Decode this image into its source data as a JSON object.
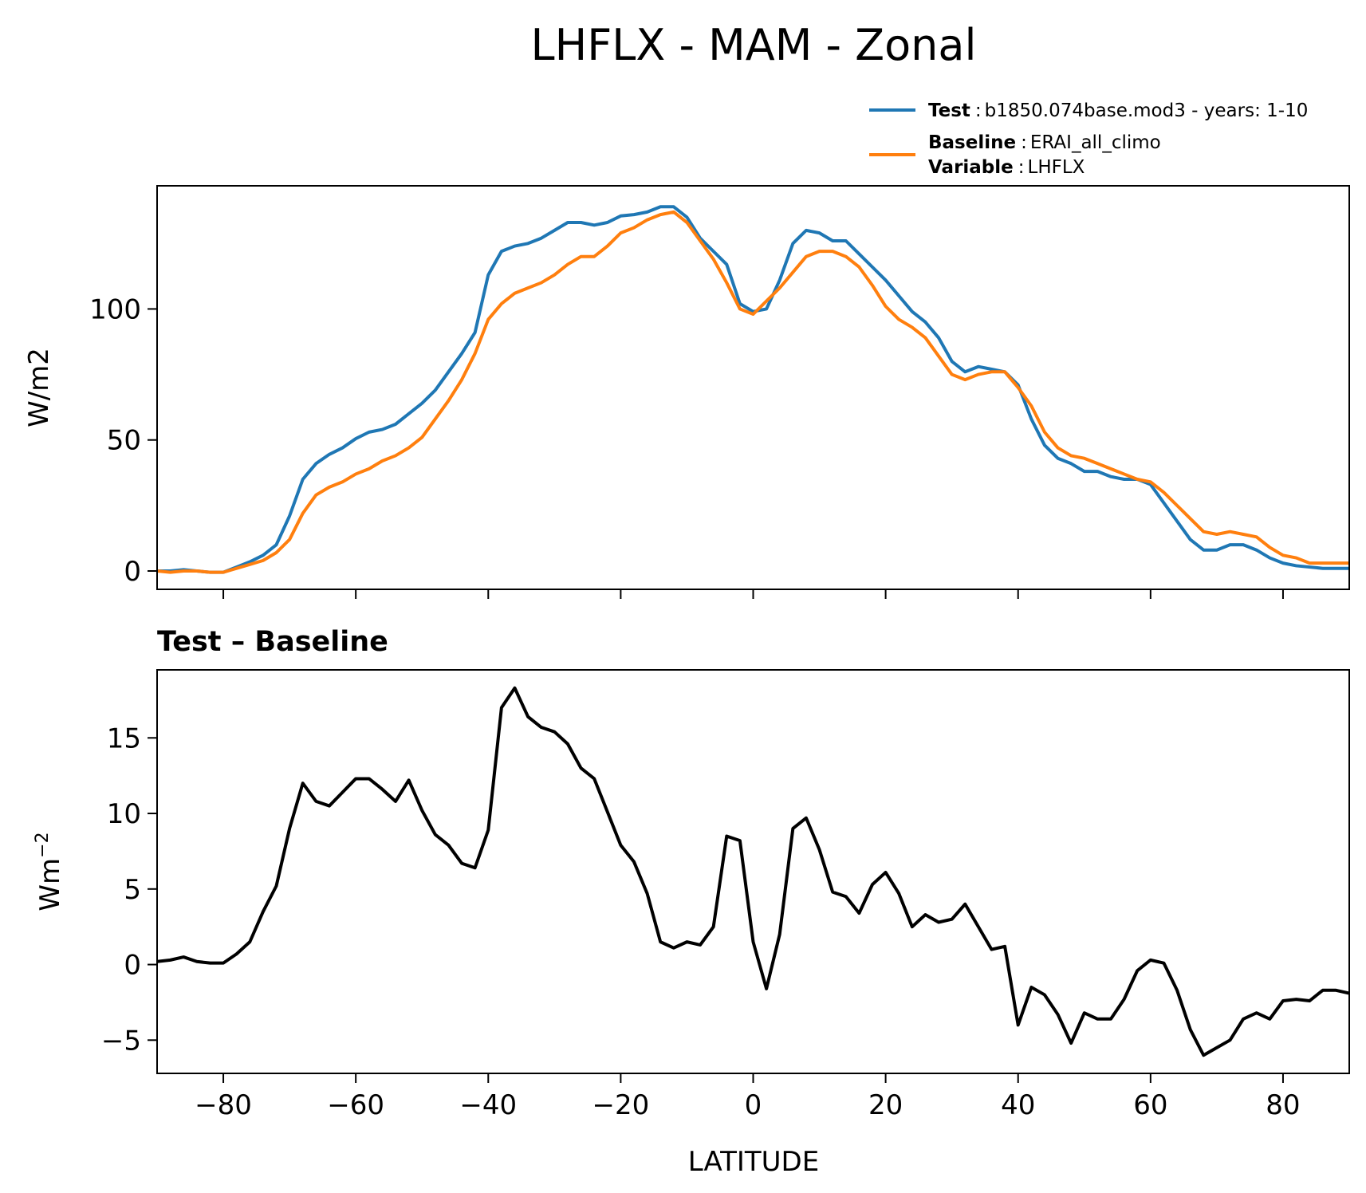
{
  "chart_data": [
    {
      "type": "line",
      "title": "LHFLX - MAM - Zonal",
      "xlabel": "",
      "ylabel": "W/m2",
      "xlim": [
        -90,
        90
      ],
      "ylim": [
        -7,
        147
      ],
      "x_ticks": [
        -80,
        -60,
        -40,
        -20,
        0,
        20,
        40,
        60,
        80
      ],
      "y_ticks": [
        0,
        50,
        100
      ],
      "y_tick_labels": [
        "0",
        "50",
        "100"
      ],
      "legend": [
        {
          "key": "Test",
          "sep": ":",
          "text": "b1850.074base.mod3 - years: 1-10",
          "color": "#1f77b4"
        },
        {
          "key": "Baseline",
          "sep": ":",
          "text": "ERAI_all_climo",
          "color": "#ff7f0e",
          "key2": "Variable",
          "sep2": ":",
          "text2": "LHFLX"
        }
      ],
      "series": [
        {
          "name": "Test",
          "color": "#1f77b4",
          "x": [
            -90,
            -88,
            -86,
            -84,
            -82,
            -80,
            -78,
            -76,
            -74,
            -72,
            -70,
            -68,
            -66,
            -64,
            -62,
            -60,
            -58,
            -56,
            -54,
            -52,
            -50,
            -48,
            -46,
            -44,
            -42,
            -40,
            -38,
            -36,
            -34,
            -32,
            -30,
            -28,
            -26,
            -24,
            -22,
            -20,
            -18,
            -16,
            -14,
            -12,
            -10,
            -8,
            -6,
            -4,
            -2,
            0,
            2,
            4,
            6,
            8,
            10,
            12,
            14,
            16,
            18,
            20,
            22,
            24,
            26,
            28,
            30,
            32,
            34,
            36,
            38,
            40,
            42,
            44,
            46,
            48,
            50,
            52,
            54,
            56,
            58,
            60,
            62,
            64,
            66,
            68,
            70,
            72,
            74,
            76,
            78,
            80,
            82,
            84,
            86,
            88,
            90
          ],
          "values": [
            0,
            0,
            0.5,
            0,
            -0.5,
            -0.5,
            1.5,
            3.5,
            6,
            10,
            21,
            35,
            41,
            44.5,
            47,
            50.5,
            53,
            54,
            56,
            60,
            64,
            69,
            76,
            83,
            91,
            113,
            122,
            124,
            125,
            127,
            130,
            133,
            133,
            132,
            133,
            135.5,
            136,
            137,
            139,
            139,
            135,
            127,
            122,
            117,
            102,
            99,
            100,
            111,
            125,
            130,
            129,
            126,
            126,
            121,
            116,
            111,
            105,
            99,
            95,
            89,
            80,
            76,
            78,
            77,
            76,
            71,
            58,
            48,
            43,
            41,
            38,
            38,
            36,
            35,
            35,
            33,
            26,
            19,
            12,
            8,
            8,
            10,
            10,
            8,
            5,
            3,
            2,
            1.5,
            1,
            1,
            1
          ]
        },
        {
          "name": "Baseline",
          "color": "#ff7f0e",
          "x": [
            -90,
            -88,
            -86,
            -84,
            -82,
            -80,
            -78,
            -76,
            -74,
            -72,
            -70,
            -68,
            -66,
            -64,
            -62,
            -60,
            -58,
            -56,
            -54,
            -52,
            -50,
            -48,
            -46,
            -44,
            -42,
            -40,
            -38,
            -36,
            -34,
            -32,
            -30,
            -28,
            -26,
            -24,
            -22,
            -20,
            -18,
            -16,
            -14,
            -12,
            -10,
            -8,
            -6,
            -4,
            -2,
            0,
            2,
            4,
            6,
            8,
            10,
            12,
            14,
            16,
            18,
            20,
            22,
            24,
            26,
            28,
            30,
            32,
            34,
            36,
            38,
            40,
            42,
            44,
            46,
            48,
            50,
            52,
            54,
            56,
            58,
            60,
            62,
            64,
            66,
            68,
            70,
            72,
            74,
            76,
            78,
            80,
            82,
            84,
            86,
            88,
            90
          ],
          "values": [
            0,
            -0.5,
            0,
            0,
            -0.5,
            -0.5,
            1,
            2.5,
            4,
            7,
            12,
            22,
            29,
            32,
            34,
            37,
            39,
            42,
            44,
            47,
            51,
            58,
            65,
            73,
            83,
            96,
            102,
            106,
            108,
            110,
            113,
            117,
            120,
            120,
            124,
            129,
            131,
            134,
            136,
            137,
            133,
            126,
            119,
            110,
            100,
            98,
            103,
            108,
            114,
            120,
            122,
            122,
            120,
            116,
            109,
            101,
            96,
            93,
            89,
            82,
            75,
            73,
            75,
            76,
            76,
            70,
            63,
            53,
            47,
            44,
            43,
            41,
            39,
            37,
            35,
            34,
            30,
            25,
            20,
            15,
            14,
            15,
            14,
            13,
            9,
            6,
            5,
            3,
            3,
            3,
            3
          ]
        }
      ]
    },
    {
      "type": "line",
      "title": "Test – Baseline",
      "xlabel": "LATITUDE",
      "ylabel": "Wm",
      "ylabel_sup": "−2",
      "xlim": [
        -90,
        90
      ],
      "ylim": [
        -7.2,
        19.5
      ],
      "x_ticks": [
        -80,
        -60,
        -40,
        -20,
        0,
        20,
        40,
        60,
        80
      ],
      "x_tick_labels": [
        "−80",
        "−60",
        "−40",
        "−20",
        "0",
        "20",
        "40",
        "60",
        "80"
      ],
      "y_ticks": [
        -5,
        0,
        5,
        10,
        15
      ],
      "y_tick_labels": [
        "−5",
        "0",
        "5",
        "10",
        "15"
      ],
      "series": [
        {
          "name": "Test - Baseline",
          "color": "#000000",
          "x": [
            -90,
            -88,
            -86,
            -84,
            -82,
            -80,
            -78,
            -76,
            -74,
            -72,
            -70,
            -68,
            -66,
            -64,
            -62,
            -60,
            -58,
            -56,
            -54,
            -52,
            -50,
            -48,
            -46,
            -44,
            -42,
            -40,
            -38,
            -36,
            -34,
            -32,
            -30,
            -28,
            -26,
            -24,
            -22,
            -20,
            -18,
            -16,
            -14,
            -12,
            -10,
            -8,
            -6,
            -4,
            -2,
            0,
            2,
            4,
            6,
            8,
            10,
            12,
            14,
            16,
            18,
            20,
            22,
            24,
            26,
            28,
            30,
            32,
            34,
            36,
            38,
            40,
            42,
            44,
            46,
            48,
            50,
            52,
            54,
            56,
            58,
            60,
            62,
            64,
            66,
            68,
            70,
            72,
            74,
            76,
            78,
            80,
            82,
            84,
            86,
            88,
            90
          ],
          "values": [
            0.2,
            0.3,
            0.5,
            0.2,
            0.1,
            0.1,
            0.7,
            1.5,
            3.5,
            5.2,
            9,
            12,
            10.8,
            10.5,
            11.4,
            12.3,
            12.3,
            11.6,
            10.8,
            12.2,
            10.2,
            8.6,
            7.9,
            6.7,
            6.4,
            8.9,
            17,
            18.3,
            16.4,
            15.7,
            15.4,
            14.6,
            13,
            12.3,
            10.1,
            7.9,
            6.8,
            4.7,
            1.5,
            1.1,
            1.5,
            1.3,
            2.5,
            8.5,
            8.2,
            1.5,
            -1.6,
            2,
            9,
            9.7,
            7.6,
            4.8,
            4.5,
            3.4,
            5.3,
            6.1,
            4.7,
            2.5,
            3.3,
            2.8,
            3,
            4,
            2.5,
            1,
            1.2,
            -4,
            -1.5,
            -2,
            -3.3,
            -5.2,
            -3.2,
            -3.6,
            -3.6,
            -2.3,
            -0.4,
            0.3,
            0.1,
            -1.7,
            -4.3,
            -6,
            -5.5,
            -5,
            -3.6,
            -3.2,
            -3.6,
            -2.4,
            -2.3,
            -2.4,
            -1.7,
            -1.7,
            -1.9
          ]
        }
      ]
    }
  ]
}
